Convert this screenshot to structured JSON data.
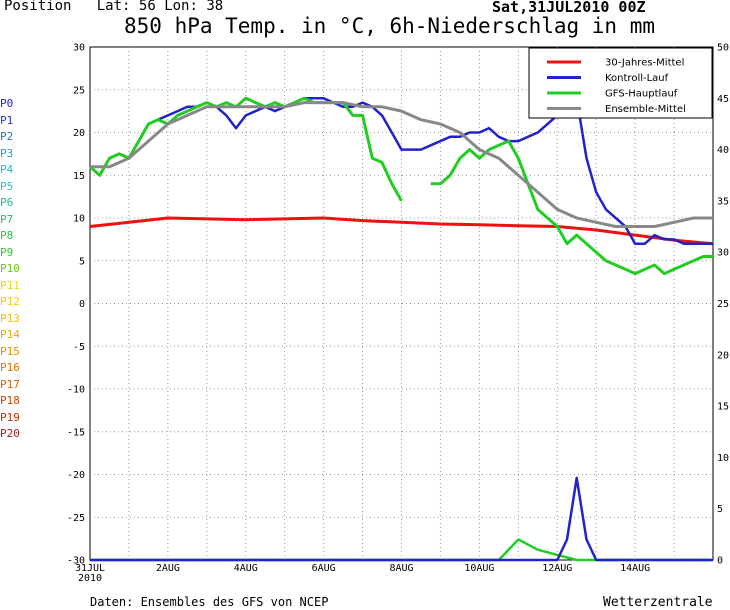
{
  "header": {
    "position_label": "Position",
    "lat_label": "Lat:",
    "lat_value": "56",
    "lon_label": "Lon:",
    "lon_value": "38",
    "run_date": "Sat,31JUL2010 00Z"
  },
  "footer": {
    "source": "Daten: Ensembles des GFS von NCEP",
    "brand": "Wetterzentrale"
  },
  "members": [
    {
      "label": "P0",
      "color": "#2222cc"
    },
    {
      "label": "P1",
      "color": "#1a3ad8"
    },
    {
      "label": "P2",
      "color": "#1f6fdc"
    },
    {
      "label": "P3",
      "color": "#1c9be0"
    },
    {
      "label": "P4",
      "color": "#18b8e0"
    },
    {
      "label": "P5",
      "color": "#20c8c8"
    },
    {
      "label": "P6",
      "color": "#20b8a0"
    },
    {
      "label": "P7",
      "color": "#20c070"
    },
    {
      "label": "P8",
      "color": "#22c840"
    },
    {
      "label": "P9",
      "color": "#33cc22"
    },
    {
      "label": "P10",
      "color": "#66cc11"
    },
    {
      "label": "P11",
      "color": "#e8e000"
    },
    {
      "label": "P12",
      "color": "#f0d000"
    },
    {
      "label": "P13",
      "color": "#f0c000"
    },
    {
      "label": "P14",
      "color": "#f0a800"
    },
    {
      "label": "P15",
      "color": "#e89000"
    },
    {
      "label": "P16",
      "color": "#e07000"
    },
    {
      "label": "P17",
      "color": "#d86000"
    },
    {
      "label": "P18",
      "color": "#c84400"
    },
    {
      "label": "P19",
      "color": "#b83000"
    },
    {
      "label": "P20",
      "color": "#a02020"
    }
  ],
  "chart_data": {
    "type": "line",
    "title": "850 hPa Temp. in °C, 6h-Niederschlag in mm",
    "x_tick_labels": [
      "31JUL\n2010",
      "2AUG",
      "4AUG",
      "6AUG",
      "8AUG",
      "10AUG",
      "12AUG",
      "14AUG"
    ],
    "x_range_days": [
      0,
      16
    ],
    "y_left": {
      "range": [
        -30,
        30
      ],
      "ticks": [
        30,
        25,
        20,
        15,
        10,
        5,
        0,
        -5,
        -10,
        -15,
        -20,
        -25,
        -30
      ],
      "unit": "°C"
    },
    "y_right": {
      "range": [
        0,
        50
      ],
      "ticks": [
        50,
        45,
        40,
        35,
        30,
        25,
        20,
        15,
        10,
        5,
        0
      ],
      "unit": "mm"
    },
    "grid": true,
    "legend": {
      "placement": "top-right",
      "entries": [
        {
          "label": "30-Jahres-Mittel",
          "color": "#ee1111"
        },
        {
          "label": "Kontroll-Lauf",
          "color": "#2222cc"
        },
        {
          "label": "GFS-Hauptlauf",
          "color": "#22cc22"
        },
        {
          "label": "Ensemble-Mittel",
          "color": "#888888"
        }
      ]
    },
    "series": [
      {
        "name": "30-Jahres-Mittel",
        "axis": "left",
        "color": "#ee1111",
        "width": 3,
        "x": [
          0,
          1,
          2,
          3,
          4,
          5,
          6,
          7,
          8,
          9,
          10,
          11,
          12,
          13,
          14,
          15,
          16
        ],
        "y": [
          9,
          9.5,
          10,
          9.9,
          9.8,
          9.9,
          10,
          9.7,
          9.5,
          9.3,
          9.2,
          9.1,
          9,
          8.6,
          8,
          7.4,
          7
        ]
      },
      {
        "name": "Kontroll-Lauf",
        "axis": "left",
        "color": "#2222cc",
        "width": 2.5,
        "x": [
          0,
          0.25,
          0.5,
          0.75,
          1,
          1.25,
          1.5,
          1.75,
          2,
          2.25,
          2.5,
          2.75,
          3,
          3.25,
          3.5,
          3.75,
          4,
          4.25,
          4.5,
          4.75,
          5,
          5.25,
          5.5,
          5.75,
          6,
          6.25,
          6.5,
          6.75,
          7,
          7.25,
          7.5,
          7.75,
          8,
          8.25,
          8.5,
          8.75,
          9,
          9.25,
          9.5,
          9.75,
          10,
          10.25,
          10.5,
          10.75,
          11,
          11.25,
          11.5,
          11.75,
          12,
          12.25,
          12.5,
          12.75,
          13,
          13.25,
          13.5,
          13.75,
          14,
          14.25,
          14.5,
          14.75,
          15,
          15.25,
          15.5,
          15.75,
          16
        ],
        "y": [
          16,
          15,
          17,
          17.5,
          17,
          19,
          21,
          21.5,
          22,
          22.5,
          23,
          23,
          23.5,
          23,
          22,
          20.5,
          22,
          22.5,
          23,
          22.5,
          23,
          23.5,
          24,
          24,
          24,
          23.5,
          23,
          23,
          23.5,
          23,
          22,
          20,
          18,
          18,
          18,
          18.5,
          19,
          19.5,
          19.5,
          20,
          20,
          20.5,
          19.5,
          19,
          19,
          19.5,
          20,
          21,
          22,
          25,
          24,
          17,
          13,
          11,
          10,
          9,
          7,
          7,
          8,
          7.5,
          7.5,
          7,
          7,
          7,
          7
        ]
      },
      {
        "name": "GFS-Hauptlauf",
        "axis": "left",
        "color": "#22cc22",
        "width": 3,
        "segments": [
          {
            "x": [
              0,
              0.25,
              0.5,
              0.75,
              1,
              1.25,
              1.5,
              1.75,
              2,
              2.25,
              2.5,
              2.75,
              3,
              3.25,
              3.5,
              3.75,
              4,
              4.25,
              4.5,
              4.75,
              5,
              5.25,
              5.5,
              5.75,
              6,
              6.25,
              6.5,
              6.75,
              7,
              7.25,
              7.5,
              7.75,
              8
            ],
            "y": [
              16,
              15,
              17,
              17.5,
              17,
              19,
              21,
              21.5,
              21,
              22,
              22.5,
              23,
              23.5,
              23,
              23.5,
              23,
              24,
              23.5,
              23,
              23.5,
              23,
              23.5,
              24,
              23.5,
              23.5,
              23.5,
              23.5,
              22,
              22,
              17,
              16.5,
              14,
              12
            ]
          },
          {
            "x": [
              8.75,
              9,
              9.25,
              9.5,
              9.75,
              10,
              10.25,
              10.5,
              10.75,
              11,
              11.25,
              11.5,
              11.75,
              12,
              12.25,
              12.5,
              12.75,
              13,
              13.25,
              13.5,
              13.75,
              14,
              14.25,
              14.5,
              14.75,
              15,
              15.25,
              15.5,
              15.75,
              16
            ],
            "y": [
              14,
              14,
              15,
              17,
              18,
              17,
              18,
              18.5,
              19,
              17,
              14,
              11,
              10,
              9,
              7,
              8,
              7,
              6,
              5,
              4.5,
              4,
              3.5,
              4,
              4.5,
              3.5,
              4,
              4.5,
              5,
              5.5,
              5.5
            ]
          }
        ]
      },
      {
        "name": "Ensemble-Mittel",
        "axis": "left",
        "color": "#888888",
        "width": 3,
        "x": [
          0,
          0.5,
          1,
          1.5,
          2,
          2.5,
          3,
          3.5,
          4,
          4.5,
          5,
          5.5,
          6,
          6.5,
          7,
          7.5,
          8,
          8.5,
          9,
          9.5,
          10,
          10.5,
          11,
          11.5,
          12,
          12.5,
          13,
          13.5,
          14,
          14.5,
          15,
          15.5,
          16
        ],
        "y": [
          16,
          16,
          17,
          19,
          21,
          22,
          23,
          23,
          23,
          23,
          23,
          23.5,
          23.5,
          23.5,
          23,
          23,
          22.5,
          21.5,
          21,
          20,
          18,
          17,
          15,
          13,
          11,
          10,
          9.5,
          9,
          9,
          9,
          9.5,
          10,
          10
        ]
      },
      {
        "name": "GFS-Hauptlauf Niederschlag",
        "axis": "right",
        "color": "#22cc22",
        "width": 2.5,
        "x": [
          0,
          1,
          2,
          3,
          4,
          5,
          6,
          7,
          8,
          9,
          10,
          10.5,
          11,
          11.5,
          12,
          12.5,
          13,
          14,
          15,
          16
        ],
        "y": [
          0,
          0,
          0,
          0,
          0,
          0,
          0,
          0,
          0,
          0,
          0,
          0,
          2,
          1,
          0.5,
          0,
          0,
          0,
          0,
          0
        ]
      },
      {
        "name": "Kontroll-Lauf Niederschlag",
        "axis": "right",
        "color": "#2222cc",
        "width": 2.5,
        "x": [
          0,
          1,
          2,
          3,
          4,
          5,
          6,
          7,
          8,
          9,
          10,
          11,
          12,
          12.25,
          12.5,
          12.75,
          13,
          13.25,
          14,
          15,
          16
        ],
        "y": [
          0,
          0,
          0,
          0,
          0,
          0,
          0,
          0,
          0,
          0,
          0,
          0,
          0,
          2,
          8,
          2,
          0,
          0,
          0,
          0,
          0
        ]
      }
    ]
  }
}
